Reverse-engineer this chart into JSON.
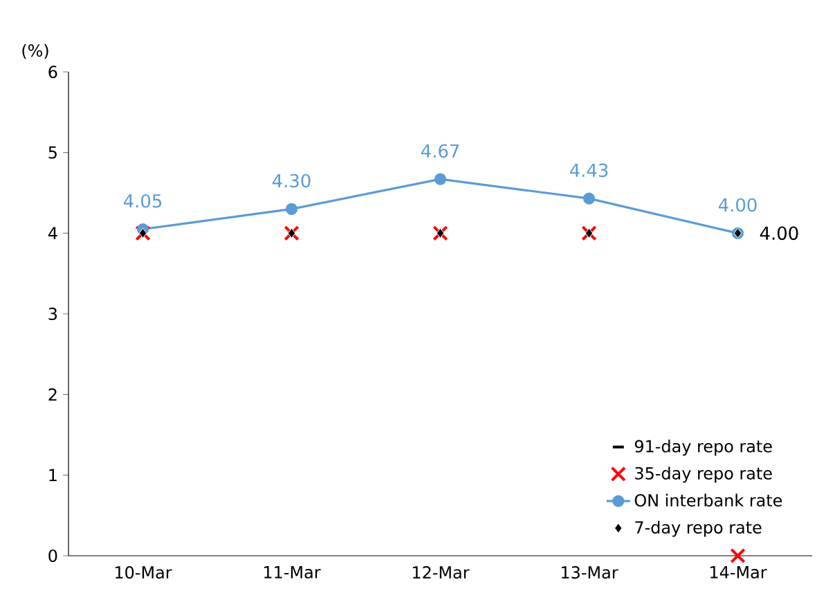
{
  "chart_data": {
    "type": "line",
    "ylabel": "(%)",
    "categories": [
      "10-Mar",
      "11-Mar",
      "12-Mar",
      "13-Mar",
      "14-Mar"
    ],
    "ylim": [
      0,
      6
    ],
    "yticks": [
      0,
      1,
      2,
      3,
      4,
      5,
      6
    ],
    "legend": "bottom right",
    "grid": false,
    "series": [
      {
        "name": "91-day repo rate",
        "type": "scatter",
        "marker": "dash",
        "color": "#000000",
        "values": [
          null,
          null,
          null,
          null,
          null
        ]
      },
      {
        "name": "35-day repo rate",
        "type": "scatter",
        "marker": "cross",
        "color": "#ff0000",
        "values": [
          4,
          4,
          4,
          4,
          0
        ]
      },
      {
        "name": "ON interbank rate",
        "type": "line",
        "marker": "circle",
        "color": "#5b9bd5",
        "values": [
          4.05,
          4.3,
          4.67,
          4.43,
          4.0
        ],
        "value_labels": [
          "4.05",
          "4.30",
          "4.67",
          "4.43",
          "4.00"
        ]
      },
      {
        "name": "7-day repo rate",
        "type": "scatter",
        "marker": "diamond",
        "color": "#000000",
        "values": [
          4,
          4,
          4,
          4,
          4
        ],
        "value_labels": [
          null,
          null,
          null,
          null,
          "4.00"
        ]
      }
    ]
  }
}
